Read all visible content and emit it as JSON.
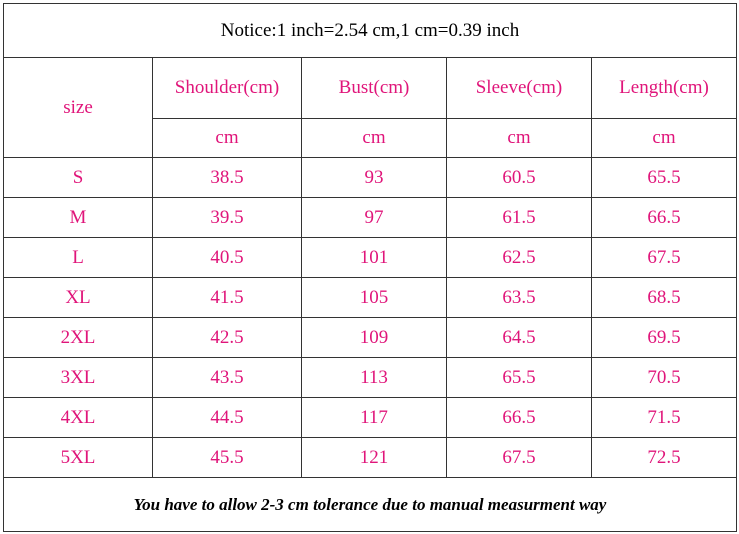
{
  "notice": "Notice:1 inch=2.54 cm,1 cm=0.39 inch",
  "table": {
    "size_header": "size",
    "columns": [
      "Shoulder(cm)",
      "Bust(cm)",
      "Sleeve(cm)",
      "Length(cm)"
    ],
    "units": [
      "cm",
      "cm",
      "cm",
      "cm"
    ],
    "rows": [
      [
        "S",
        38.5,
        93,
        60.5,
        65.5
      ],
      [
        "M",
        39.5,
        97,
        61.5,
        66.5
      ],
      [
        "L",
        40.5,
        101,
        62.5,
        67.5
      ],
      [
        "XL",
        41.5,
        105,
        63.5,
        68.5
      ],
      [
        "2XL",
        42.5,
        109,
        64.5,
        69.5
      ],
      [
        "3XL",
        43.5,
        113,
        65.5,
        70.5
      ],
      [
        "4XL",
        44.5,
        117,
        66.5,
        71.5
      ],
      [
        "5XL",
        45.5,
        121,
        67.5,
        72.5
      ]
    ]
  },
  "footer": "You have to allow 2-3 cm tolerance due to manual measurment way"
}
